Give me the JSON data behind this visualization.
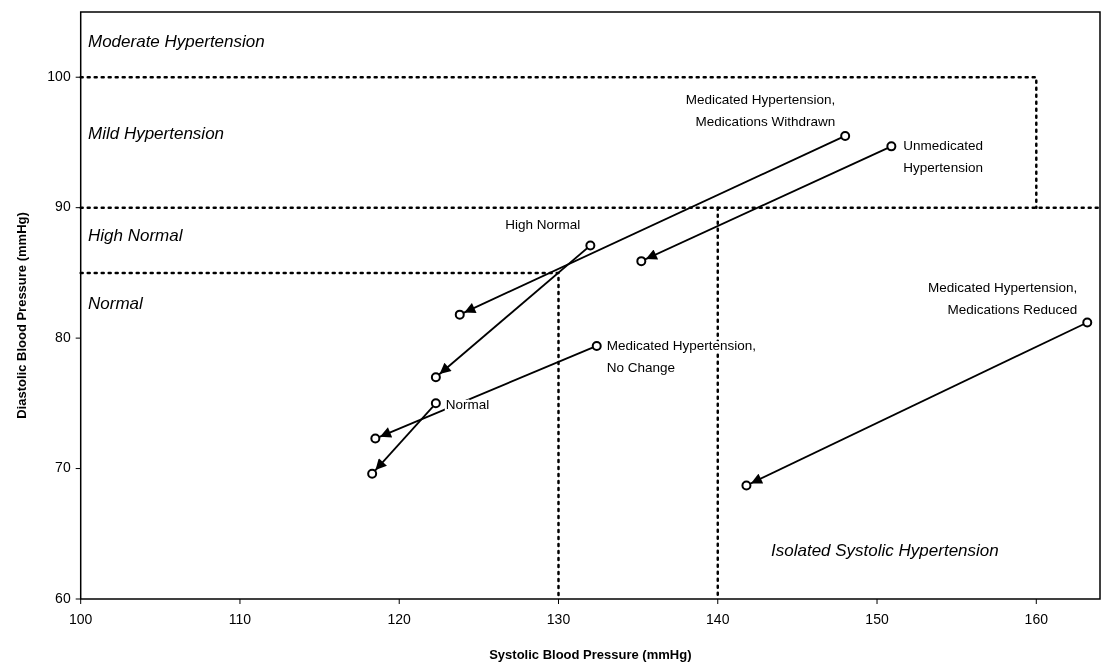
{
  "chart_data": {
    "type": "line",
    "xlabel": "Systolic Blood Pressure (mmHg)",
    "ylabel": "Diastolic Blood Pressure (mmHg)",
    "xlim": [
      100,
      164
    ],
    "ylim": [
      60,
      105
    ],
    "xticks": [
      100,
      110,
      120,
      130,
      140,
      150,
      160
    ],
    "yticks": [
      60,
      70,
      80,
      90,
      100
    ],
    "grid": false,
    "marker": "circle",
    "series": [
      {
        "name": "Medicated Hypertension,\nMedications Withdrawn",
        "color": "#000000",
        "x": [
          148.0,
          123.8
        ],
        "values": [
          95.5,
          81.8
        ]
      },
      {
        "name": "Unmedicated\nHypertension",
        "color": "#000000",
        "x": [
          150.9,
          135.2
        ],
        "values": [
          94.7,
          85.9
        ]
      },
      {
        "name": "High Normal",
        "color": "#000000",
        "x": [
          132.0,
          122.3
        ],
        "values": [
          87.1,
          77.0
        ]
      },
      {
        "name": "Normal",
        "color": "#000000",
        "x": [
          122.3,
          118.3
        ],
        "values": [
          75.0,
          69.6
        ]
      },
      {
        "name": "Medicated Hypertension,\nNo Change",
        "color": "#000000",
        "x": [
          132.4,
          118.5
        ],
        "values": [
          79.4,
          72.3
        ]
      },
      {
        "name": "Medicated Hypertension,\nMedications Reduced",
        "color": "#000000",
        "x": [
          163.2,
          141.8
        ],
        "values": [
          81.2,
          68.7
        ]
      },
      {
        "type": "line",
        "marker": "none",
        "line_style": "dotted",
        "color": "#000000",
        "x": [
          100,
          160,
          160
        ],
        "values": [
          100,
          100,
          90
        ]
      },
      {
        "type": "line",
        "marker": "none",
        "line_style": "dotted",
        "color": "#000000",
        "x": [
          100,
          164
        ],
        "values": [
          90,
          90
        ]
      },
      {
        "type": "line",
        "marker": "none",
        "line_style": "dotted",
        "color": "#000000",
        "x": [
          100,
          130,
          130
        ],
        "values": [
          85,
          85,
          60
        ]
      },
      {
        "type": "line",
        "marker": "none",
        "line_style": "dotted",
        "color": "#000000",
        "x": [
          140,
          140
        ],
        "values": [
          90,
          60
        ]
      }
    ],
    "annotations": [
      "Moderate Hypertension",
      "Mild Hypertension",
      "High Normal",
      "Normal",
      "Isolated Systolic Hypertension"
    ]
  }
}
